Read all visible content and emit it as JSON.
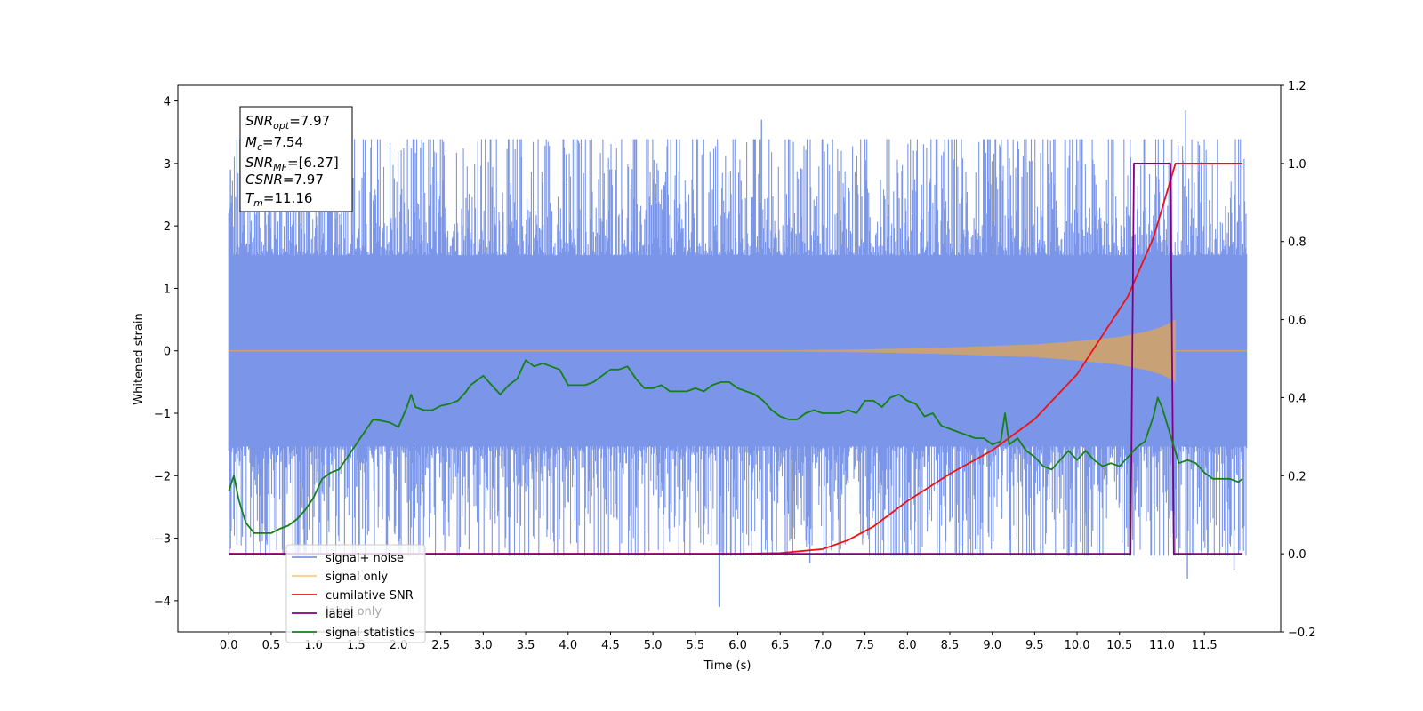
{
  "chart_data": {
    "type": "line",
    "xlabel": "Time (s)",
    "ylabel": "Whitened strain",
    "xlim": [
      -0.6,
      12.4
    ],
    "ylim": [
      -4.5,
      4.25
    ],
    "y2lim": [
      -0.2,
      1.2
    ],
    "x_ticks": [
      "0.0",
      "0.5",
      "1.0",
      "1.5",
      "2.0",
      "2.5",
      "3.0",
      "3.5",
      "4.0",
      "4.5",
      "5.0",
      "5.5",
      "6.0",
      "6.5",
      "7.0",
      "7.5",
      "8.0",
      "8.5",
      "9.0",
      "9.5",
      "10.0",
      "10.5",
      "11.0",
      "11.5"
    ],
    "y_ticks": [
      "4",
      "3",
      "2",
      "1",
      "0",
      "−1",
      "−2",
      "−3",
      "−4"
    ],
    "y2_ticks": [
      "1.2",
      "1.0",
      "0.8",
      "0.6",
      "0.4",
      "0.2",
      "0.0",
      "−0.2"
    ],
    "annotation": {
      "snr_opt": {
        "main": "SNR",
        "sub": "opt",
        "value": "=7.97"
      },
      "mc": {
        "main": "M",
        "sub": "c",
        "value": "=7.54"
      },
      "snr_mf": {
        "main": "SNR",
        "sub": "MF",
        "value": "=[6.27]"
      },
      "csnr": {
        "main": "CSNR",
        "value": "=7.97"
      },
      "tm": {
        "main": "T",
        "sub": "m",
        "value": "=11.16"
      }
    },
    "legend": {
      "placement": "lower-left",
      "entries": [
        "signal+ noise",
        "signal only",
        "cumilative SNR",
        "label",
        "signal statistics"
      ],
      "hidden_entry": "label only"
    },
    "colors": {
      "noise": "#7b96e8",
      "signal": "#c8a276",
      "signal_legend": "#ffcc80",
      "snr": "#ee1111",
      "label": "#800080",
      "stats": "#158015"
    },
    "series": [
      {
        "name": "cumilative SNR",
        "axis": "right",
        "x": [
          0.0,
          6.0,
          6.5,
          7.0,
          7.3,
          7.6,
          8.0,
          8.5,
          9.0,
          9.5,
          10.0,
          10.3,
          10.6,
          10.9,
          11.16,
          11.2,
          11.6,
          11.95
        ],
        "y": [
          0.0,
          0.0,
          0.002,
          0.012,
          0.035,
          0.07,
          0.135,
          0.205,
          0.265,
          0.345,
          0.46,
          0.56,
          0.66,
          0.81,
          1.0,
          1.0,
          1.0,
          1.0
        ]
      },
      {
        "name": "label",
        "axis": "right",
        "x": [
          0.0,
          10.63,
          10.67,
          11.1,
          11.14,
          11.95
        ],
        "y": [
          0.0,
          0.0,
          1.0,
          1.0,
          0.0,
          0.0
        ]
      },
      {
        "name": "signal statistics",
        "axis": "left",
        "x": [
          0.0,
          0.06,
          0.12,
          0.2,
          0.3,
          0.4,
          0.5,
          0.6,
          0.7,
          0.8,
          0.9,
          1.0,
          1.1,
          1.2,
          1.3,
          1.4,
          1.5,
          1.6,
          1.7,
          1.8,
          1.9,
          2.0,
          2.1,
          2.15,
          2.2,
          2.3,
          2.4,
          2.5,
          2.6,
          2.7,
          2.8,
          2.85,
          2.9,
          3.0,
          3.1,
          3.2,
          3.3,
          3.4,
          3.5,
          3.6,
          3.7,
          3.8,
          3.9,
          4.0,
          4.1,
          4.2,
          4.3,
          4.4,
          4.5,
          4.6,
          4.7,
          4.8,
          4.9,
          5.0,
          5.1,
          5.2,
          5.3,
          5.4,
          5.5,
          5.6,
          5.7,
          5.8,
          5.9,
          6.0,
          6.1,
          6.2,
          6.3,
          6.4,
          6.5,
          6.6,
          6.7,
          6.8,
          6.9,
          7.0,
          7.1,
          7.2,
          7.3,
          7.4,
          7.5,
          7.6,
          7.7,
          7.8,
          7.9,
          8.0,
          8.1,
          8.2,
          8.3,
          8.4,
          8.5,
          8.6,
          8.7,
          8.8,
          8.9,
          9.0,
          9.1,
          9.15,
          9.2,
          9.3,
          9.4,
          9.5,
          9.6,
          9.7,
          9.8,
          9.9,
          10.0,
          10.1,
          10.2,
          10.3,
          10.4,
          10.5,
          10.6,
          10.7,
          10.8,
          10.9,
          10.95,
          11.0,
          11.1,
          11.2,
          11.3,
          11.4,
          11.5,
          11.6,
          11.7,
          11.8,
          11.9,
          11.95
        ],
        "y": [
          -2.25,
          -2.0,
          -2.4,
          -2.75,
          -2.92,
          -2.92,
          -2.92,
          -2.85,
          -2.8,
          -2.7,
          -2.55,
          -2.35,
          -2.05,
          -1.95,
          -1.9,
          -1.7,
          -1.5,
          -1.3,
          -1.1,
          -1.12,
          -1.15,
          -1.22,
          -0.9,
          -0.7,
          -0.9,
          -0.95,
          -0.95,
          -0.88,
          -0.85,
          -0.8,
          -0.65,
          -0.55,
          -0.5,
          -0.4,
          -0.55,
          -0.7,
          -0.55,
          -0.45,
          -0.15,
          -0.25,
          -0.2,
          -0.25,
          -0.3,
          -0.55,
          -0.55,
          -0.55,
          -0.5,
          -0.4,
          -0.3,
          -0.3,
          -0.25,
          -0.45,
          -0.6,
          -0.6,
          -0.55,
          -0.65,
          -0.65,
          -0.65,
          -0.6,
          -0.65,
          -0.55,
          -0.5,
          -0.5,
          -0.6,
          -0.65,
          -0.7,
          -0.8,
          -0.95,
          -1.05,
          -1.1,
          -1.1,
          -1.0,
          -0.95,
          -1.0,
          -1.0,
          -1.0,
          -0.95,
          -1.0,
          -0.8,
          -0.8,
          -0.9,
          -0.75,
          -0.7,
          -0.8,
          -0.85,
          -1.05,
          -1.0,
          -1.2,
          -1.25,
          -1.3,
          -1.35,
          -1.4,
          -1.4,
          -1.5,
          -1.45,
          -1.0,
          -1.5,
          -1.4,
          -1.6,
          -1.7,
          -1.85,
          -1.9,
          -1.75,
          -1.6,
          -1.75,
          -1.6,
          -1.75,
          -1.85,
          -1.8,
          -1.85,
          -1.7,
          -1.55,
          -1.45,
          -1.05,
          -0.75,
          -0.9,
          -1.35,
          -1.8,
          -1.75,
          -1.8,
          -1.95,
          -2.05,
          -2.05,
          -2.05,
          -2.1,
          -2.05
        ]
      }
    ],
    "noise_band": {
      "name": "signal+ noise",
      "x_range": [
        0.0,
        12.0
      ],
      "core_amplitude": 1.7,
      "max": 3.85,
      "min": -4.1,
      "spikes": [
        [
          0.02,
          2.9
        ],
        [
          0.45,
          -3.1
        ],
        [
          1.45,
          3.05
        ],
        [
          2.12,
          -3.3
        ],
        [
          3.45,
          3.1
        ],
        [
          5.78,
          -4.1
        ],
        [
          6.28,
          3.7
        ],
        [
          6.85,
          -3.4
        ],
        [
          9.3,
          3.35
        ],
        [
          11.28,
          3.85
        ],
        [
          11.3,
          -3.65
        ],
        [
          11.85,
          -3.5
        ]
      ]
    },
    "signal_envelope": {
      "name": "signal only",
      "x": [
        6.5,
        7.5,
        8.5,
        9.5,
        10.0,
        10.5,
        10.8,
        11.0,
        11.1,
        11.16
      ],
      "y": [
        0.005,
        0.02,
        0.05,
        0.1,
        0.15,
        0.22,
        0.3,
        0.38,
        0.45,
        0.5
      ]
    }
  }
}
